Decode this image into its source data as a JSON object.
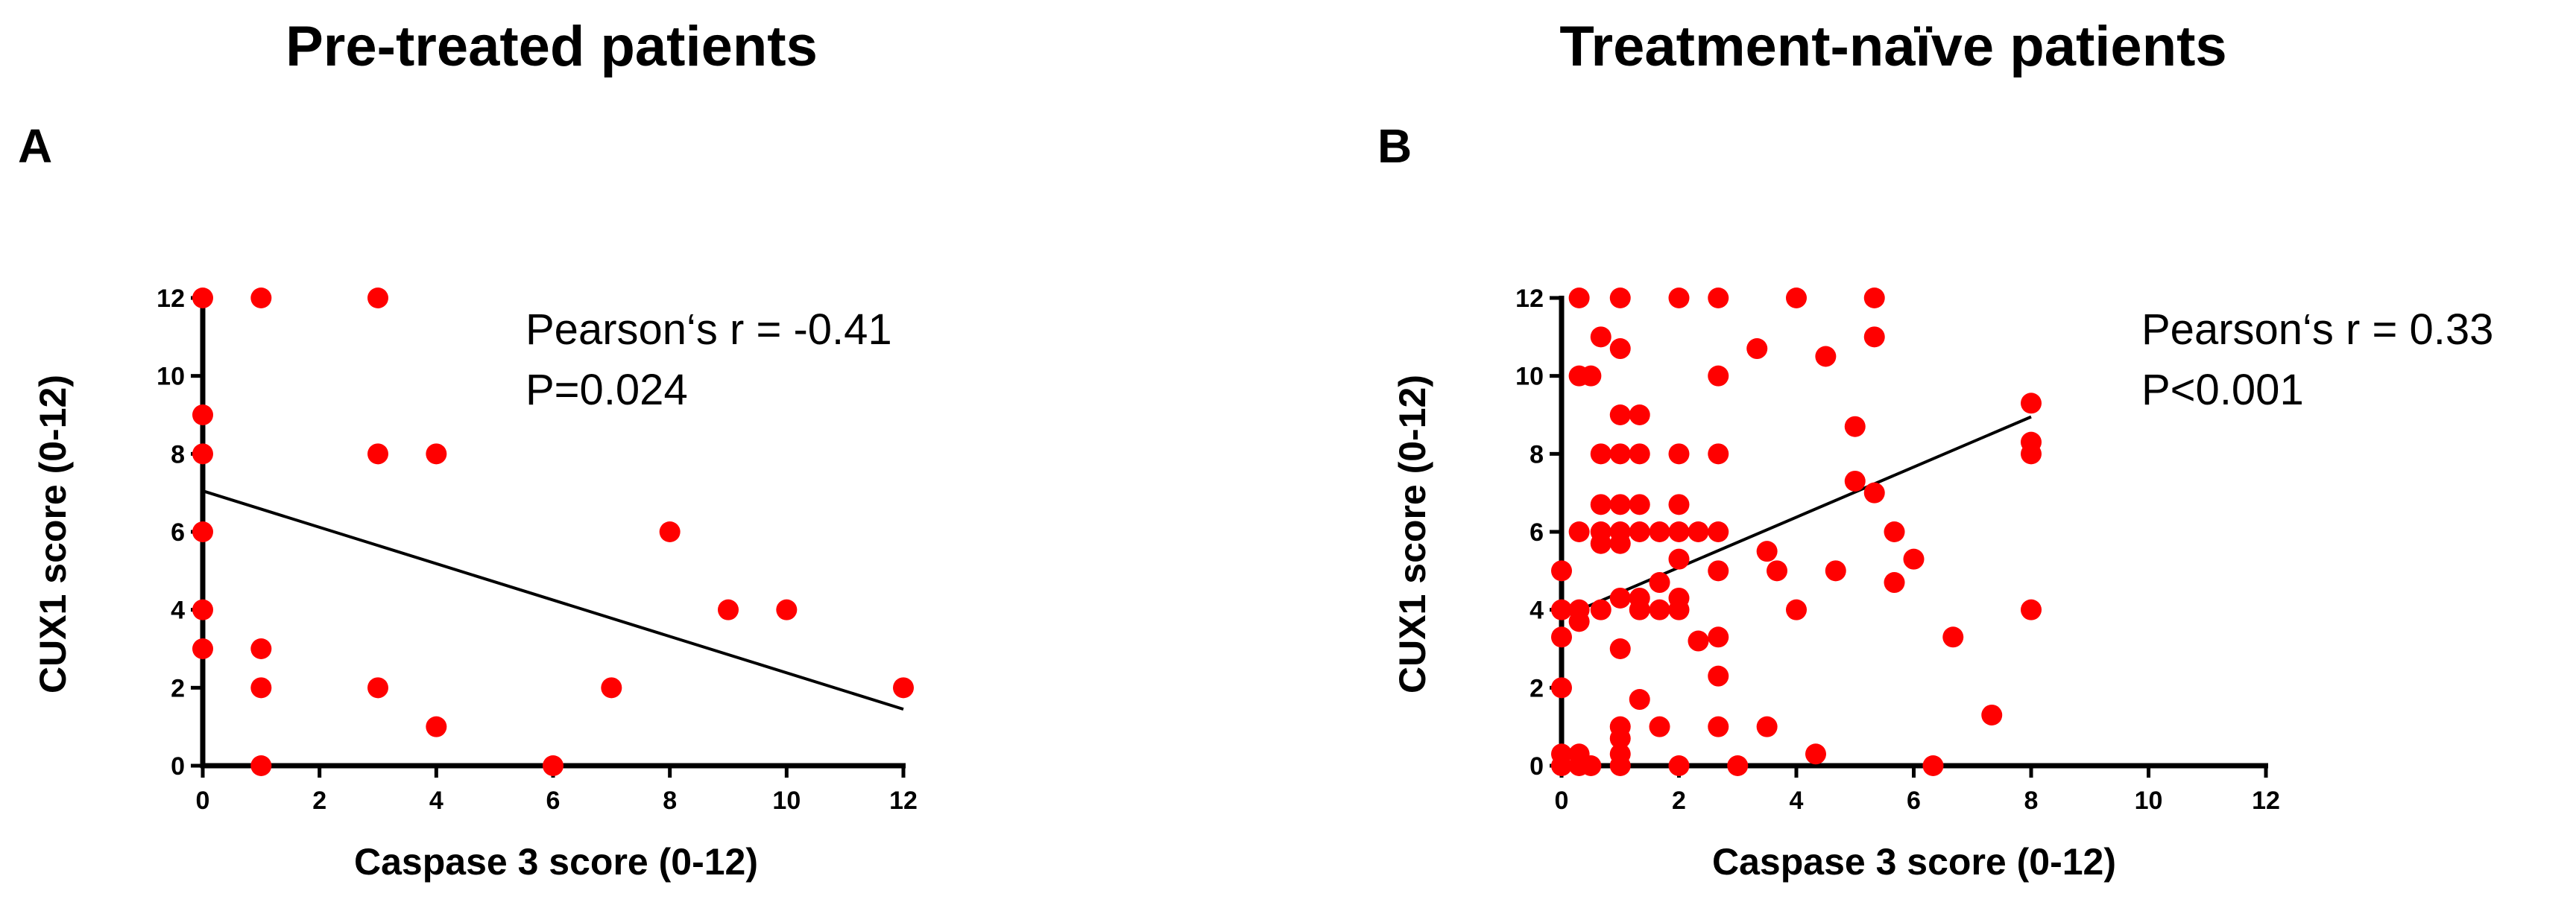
{
  "chart_data": [
    {
      "type": "scatter",
      "panel": "A",
      "title": "Pre-treated patients",
      "xlabel": "Caspase 3 score (0-12)",
      "ylabel": "CUX1 score (0-12)",
      "xlim": [
        0,
        12
      ],
      "ylim": [
        0,
        12
      ],
      "xticks": [
        0,
        2,
        4,
        6,
        8,
        10,
        12
      ],
      "yticks": [
        0,
        2,
        4,
        6,
        8,
        10,
        12
      ],
      "annotation": [
        "Pearson‘s r = -0.41",
        "P=0.024"
      ],
      "point_color": "#ff0000",
      "fit_line": [
        [
          0,
          7.05
        ],
        [
          12,
          1.45
        ]
      ],
      "points": [
        [
          0,
          12
        ],
        [
          0,
          9
        ],
        [
          0,
          8
        ],
        [
          0,
          6
        ],
        [
          0,
          4
        ],
        [
          0,
          3
        ],
        [
          1,
          12
        ],
        [
          1,
          3
        ],
        [
          1,
          2
        ],
        [
          1,
          0
        ],
        [
          3,
          12
        ],
        [
          3,
          8
        ],
        [
          3,
          2
        ],
        [
          4,
          8
        ],
        [
          4,
          1
        ],
        [
          6,
          0
        ],
        [
          7,
          2
        ],
        [
          8,
          6
        ],
        [
          9,
          4
        ],
        [
          10,
          4
        ],
        [
          12,
          2
        ]
      ]
    },
    {
      "type": "scatter",
      "panel": "B",
      "title": "Treatment-naïve patients",
      "xlabel": "Caspase 3 score (0-12)",
      "ylabel": "CUX1 score (0-12)",
      "xlim": [
        0,
        12
      ],
      "ylim": [
        0,
        12
      ],
      "xticks": [
        0,
        2,
        4,
        6,
        8,
        10,
        12
      ],
      "yticks": [
        0,
        2,
        4,
        6,
        8,
        10,
        12
      ],
      "annotation": [
        "Pearson‘s r = 0.33",
        "P<0.001"
      ],
      "point_color": "#ff0000",
      "fit_line": [
        [
          0,
          3.8
        ],
        [
          8,
          8.95
        ]
      ],
      "points": [
        [
          0,
          5
        ],
        [
          0,
          4
        ],
        [
          0,
          3.3
        ],
        [
          0,
          2
        ],
        [
          0,
          0.3
        ],
        [
          0,
          0
        ],
        [
          0.3,
          12
        ],
        [
          0.3,
          10
        ],
        [
          0.3,
          6
        ],
        [
          0.3,
          4
        ],
        [
          0.3,
          3.7
        ],
        [
          0.3,
          0.3
        ],
        [
          0.3,
          0
        ],
        [
          0.5,
          10
        ],
        [
          0.5,
          0
        ],
        [
          0.67,
          11
        ],
        [
          0.67,
          8
        ],
        [
          0.67,
          6.7
        ],
        [
          0.67,
          6
        ],
        [
          0.67,
          5.7
        ],
        [
          0.67,
          4
        ],
        [
          1,
          12
        ],
        [
          1,
          10.7
        ],
        [
          1,
          9
        ],
        [
          1,
          8
        ],
        [
          1,
          6.7
        ],
        [
          1,
          6
        ],
        [
          1,
          5.7
        ],
        [
          1,
          4.3
        ],
        [
          1,
          3
        ],
        [
          1,
          1
        ],
        [
          1,
          0.7
        ],
        [
          1,
          0.3
        ],
        [
          1,
          0
        ],
        [
          1.33,
          9
        ],
        [
          1.33,
          8
        ],
        [
          1.33,
          6.7
        ],
        [
          1.33,
          6
        ],
        [
          1.33,
          4.3
        ],
        [
          1.33,
          4
        ],
        [
          1.33,
          1.7
        ],
        [
          1.67,
          6
        ],
        [
          1.67,
          4.7
        ],
        [
          1.67,
          4
        ],
        [
          1.67,
          1
        ],
        [
          2,
          12
        ],
        [
          2,
          8
        ],
        [
          2,
          6.7
        ],
        [
          2,
          6
        ],
        [
          2,
          5.3
        ],
        [
          2,
          4.3
        ],
        [
          2,
          4
        ],
        [
          2,
          0
        ],
        [
          2.33,
          6
        ],
        [
          2.33,
          3.2
        ],
        [
          2.67,
          12
        ],
        [
          2.67,
          10
        ],
        [
          2.67,
          8
        ],
        [
          2.67,
          6
        ],
        [
          2.67,
          5
        ],
        [
          2.67,
          3.3
        ],
        [
          2.67,
          2.3
        ],
        [
          2.67,
          1
        ],
        [
          3,
          0
        ],
        [
          3.33,
          10.7
        ],
        [
          3.5,
          5.5
        ],
        [
          3.5,
          1
        ],
        [
          3.67,
          5
        ],
        [
          4,
          12
        ],
        [
          4,
          4
        ],
        [
          4.33,
          0.3
        ],
        [
          4.5,
          10.5
        ],
        [
          4.67,
          5
        ],
        [
          5,
          8.7
        ],
        [
          5,
          7.3
        ],
        [
          5.33,
          12
        ],
        [
          5.33,
          11
        ],
        [
          5.33,
          7
        ],
        [
          5.67,
          6
        ],
        [
          5.67,
          4.7
        ],
        [
          6,
          5.3
        ],
        [
          6.33,
          0
        ],
        [
          6.67,
          3.3
        ],
        [
          7.33,
          1.3
        ],
        [
          8,
          9.3
        ],
        [
          8,
          8.3
        ],
        [
          8,
          8
        ],
        [
          8,
          4
        ]
      ]
    }
  ]
}
